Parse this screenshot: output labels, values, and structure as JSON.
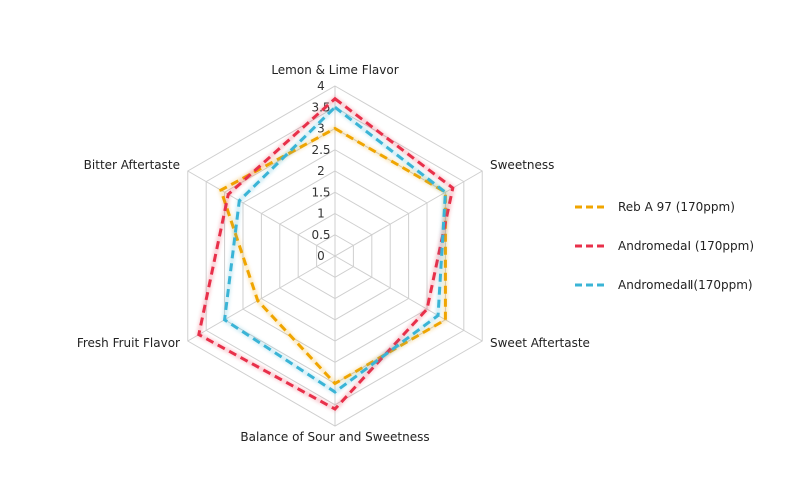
{
  "chart_data": {
    "type": "radar",
    "axes": [
      "Lemon & Lime Flavor",
      "Sweetness",
      "Sweet Aftertaste",
      "Balance of Sour and Sweetness",
      "Fresh Fruit Flavor",
      "Bitter Aftertaste"
    ],
    "range": [
      0,
      4
    ],
    "ticks": [
      "0",
      "0.5",
      "1",
      "1.5",
      "2",
      "2.5",
      "3",
      "3.5",
      "4"
    ],
    "series": [
      {
        "name": "Reb A 97  (170ppm)",
        "color": "#F0A500",
        "values": [
          3.0,
          3.0,
          3.0,
          3.0,
          2.1,
          3.1
        ]
      },
      {
        "name": "AndromedaⅠ (170ppm)",
        "color": "#E8304A",
        "values": [
          3.7,
          3.2,
          2.5,
          3.6,
          3.7,
          2.9
        ]
      },
      {
        "name": "AndromedaⅡ(170ppm)",
        "color": "#3AB4D6",
        "values": [
          3.5,
          3.0,
          2.8,
          3.2,
          3.0,
          2.6
        ]
      }
    ],
    "legend_position": "right",
    "grid": true
  }
}
